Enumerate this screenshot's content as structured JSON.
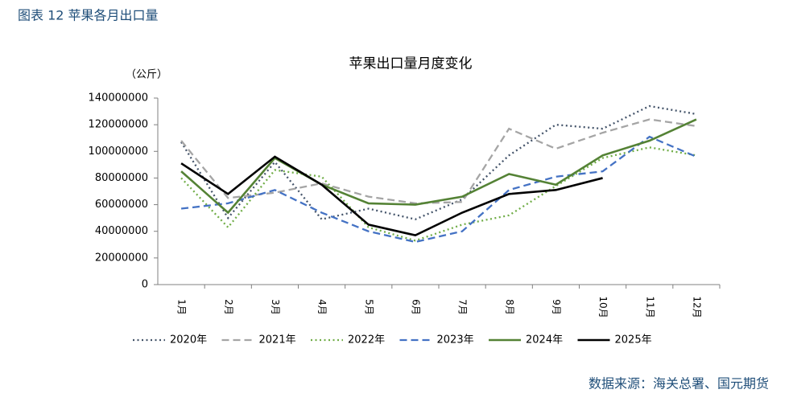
{
  "figure_label": "图表 12 苹果各月出口量",
  "source": "数据来源：海关总署、国元期货",
  "chart_data": {
    "type": "line",
    "title": "苹果出口量月度变化",
    "y_label": "（公斤）",
    "categories": [
      "1月",
      "2月",
      "3月",
      "4月",
      "5月",
      "6月",
      "7月",
      "8月",
      "9月",
      "10月",
      "11月",
      "12月"
    ],
    "ylim": [
      0,
      140000000
    ],
    "yticks": [
      0,
      20000000,
      40000000,
      60000000,
      80000000,
      100000000,
      120000000,
      140000000
    ],
    "grid": false,
    "legend": "bottom",
    "series": [
      {
        "name": "2020年",
        "color": "#44546a",
        "style": "dotted",
        "values": [
          107000000,
          50000000,
          92000000,
          49000000,
          57000000,
          49000000,
          64000000,
          97000000,
          120000000,
          117000000,
          134000000,
          128000000
        ]
      },
      {
        "name": "2021年",
        "color": "#a5a5a5",
        "style": "dashed",
        "values": [
          108000000,
          65000000,
          69000000,
          76000000,
          66000000,
          61000000,
          62000000,
          117000000,
          102000000,
          114000000,
          124000000,
          119000000
        ]
      },
      {
        "name": "2022年",
        "color": "#70ad47",
        "style": "dotted",
        "values": [
          80000000,
          43000000,
          86000000,
          81000000,
          43000000,
          33000000,
          45000000,
          52000000,
          74000000,
          95000000,
          103000000,
          97000000
        ]
      },
      {
        "name": "2023年",
        "color": "#4472c4",
        "style": "dashed",
        "values": [
          57000000,
          61000000,
          71000000,
          54000000,
          40000000,
          32000000,
          40000000,
          71000000,
          81000000,
          85000000,
          111000000,
          96000000
        ]
      },
      {
        "name": "2024年",
        "color": "#548235",
        "style": "solid",
        "values": [
          85000000,
          54000000,
          95000000,
          75000000,
          61000000,
          60000000,
          66000000,
          83000000,
          75000000,
          97000000,
          108000000,
          124000000
        ]
      },
      {
        "name": "2025年",
        "color": "#000000",
        "style": "solid",
        "values": [
          91000000,
          68000000,
          96000000,
          75000000,
          45000000,
          37000000,
          54000000,
          68000000,
          71000000,
          80000000,
          null,
          null
        ]
      }
    ]
  }
}
